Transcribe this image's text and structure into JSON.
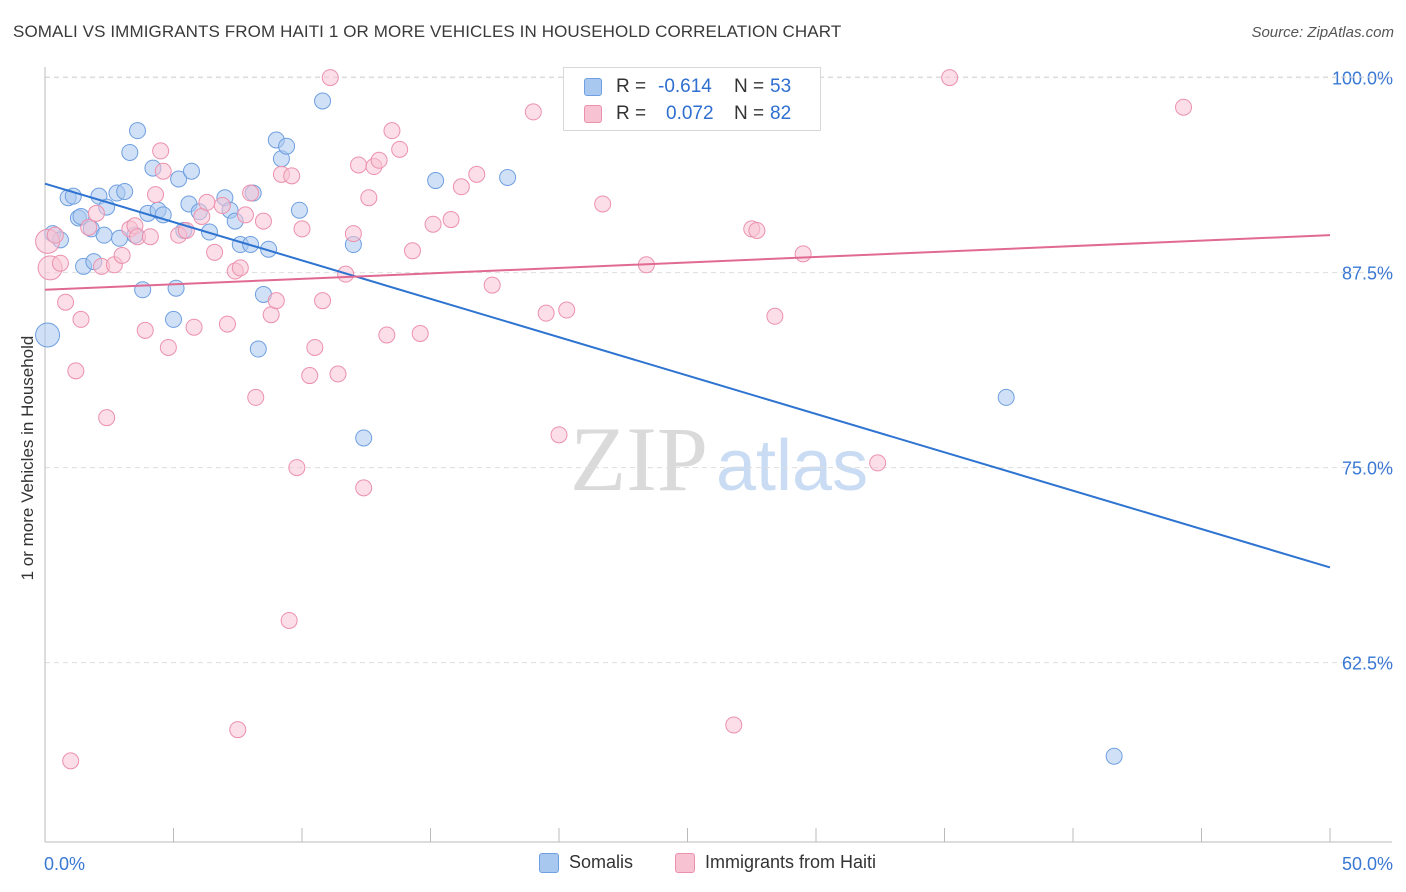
{
  "title": "SOMALI VS IMMIGRANTS FROM HAITI 1 OR MORE VEHICLES IN HOUSEHOLD CORRELATION CHART",
  "source": "Source: ZipAtlas.com",
  "watermark": {
    "zip": "ZIP",
    "atlas": "atlas"
  },
  "legend_top": {
    "rows": [
      {
        "r_label": "R =",
        "r_value": "-0.614",
        "n_label": "N =",
        "n_value": "53",
        "color": "#a9c8f0",
        "border": "#6f9fe0"
      },
      {
        "r_label": "R =",
        "r_value": "0.072",
        "n_label": "N =",
        "n_value": "82",
        "color": "#f7c3d3",
        "border": "#ec91ad"
      }
    ]
  },
  "legend_bottom": [
    {
      "label": "Somalis",
      "color": "#a9c8f0",
      "border": "#6f9fe0"
    },
    {
      "label": "Immigrants from Haiti",
      "color": "#f7c3d3",
      "border": "#ec91ad"
    }
  ],
  "chart_data": {
    "type": "scatter",
    "title": "SOMALI VS IMMIGRANTS FROM HAITI 1 OR MORE VEHICLES IN HOUSEHOLD CORRELATION CHART",
    "xlabel": "",
    "ylabel": "1 or more Vehicles in Household",
    "xlim": [
      0,
      50
    ],
    "ylim": [
      51,
      101
    ],
    "x_tick_labels": [
      "0.0%",
      "50.0%"
    ],
    "y_tick_labels": [
      "100.0%",
      "87.5%",
      "75.0%",
      "62.5%"
    ],
    "y_ticks": [
      100,
      87.5,
      75,
      62.5
    ],
    "grid": true,
    "series": [
      {
        "name": "Somalis",
        "color": "#a9c8f0",
        "stroke": "#6f9fe0",
        "line_color": "#2e74d0",
        "trend": {
          "x": [
            0,
            50
          ],
          "y": [
            93.2,
            68.6
          ]
        },
        "points": [
          [
            0.1,
            83.5
          ],
          [
            0.3,
            90.0
          ],
          [
            0.6,
            89.6
          ],
          [
            0.9,
            92.3
          ],
          [
            1.1,
            92.4
          ],
          [
            1.3,
            91.0
          ],
          [
            1.4,
            91.1
          ],
          [
            1.5,
            87.9
          ],
          [
            1.8,
            90.3
          ],
          [
            1.9,
            88.2
          ],
          [
            2.1,
            92.4
          ],
          [
            2.3,
            89.9
          ],
          [
            2.4,
            91.7
          ],
          [
            2.8,
            92.6
          ],
          [
            2.9,
            89.7
          ],
          [
            3.1,
            92.7
          ],
          [
            3.3,
            95.2
          ],
          [
            3.5,
            89.9
          ],
          [
            3.6,
            96.6
          ],
          [
            3.8,
            86.4
          ],
          [
            4.0,
            91.3
          ],
          [
            4.2,
            94.2
          ],
          [
            4.4,
            91.5
          ],
          [
            4.6,
            91.2
          ],
          [
            5.0,
            84.5
          ],
          [
            5.1,
            86.5
          ],
          [
            5.2,
            93.5
          ],
          [
            5.4,
            90.2
          ],
          [
            5.6,
            91.9
          ],
          [
            5.7,
            94.0
          ],
          [
            6.0,
            91.4
          ],
          [
            6.4,
            90.1
          ],
          [
            7.0,
            92.3
          ],
          [
            7.2,
            91.5
          ],
          [
            7.4,
            90.8
          ],
          [
            7.6,
            89.3
          ],
          [
            8.0,
            89.3
          ],
          [
            8.1,
            92.6
          ],
          [
            8.3,
            82.6
          ],
          [
            8.5,
            86.1
          ],
          [
            8.7,
            89.0
          ],
          [
            9.0,
            96.0
          ],
          [
            9.2,
            94.8
          ],
          [
            9.4,
            95.6
          ],
          [
            9.9,
            91.5
          ],
          [
            10.8,
            98.5
          ],
          [
            12.0,
            89.3
          ],
          [
            12.4,
            76.9
          ],
          [
            15.2,
            93.4
          ],
          [
            18.0,
            93.6
          ],
          [
            37.4,
            79.5
          ],
          [
            41.6,
            56.5
          ]
        ]
      },
      {
        "name": "Immigrants from Haiti",
        "color": "#f7c3d3",
        "stroke": "#ec91ad",
        "line_color": "#e06a93",
        "trend": {
          "x": [
            0,
            50
          ],
          "y": [
            86.4,
            89.9
          ]
        },
        "points": [
          [
            0.1,
            89.5
          ],
          [
            0.2,
            87.8
          ],
          [
            0.4,
            89.9
          ],
          [
            0.6,
            88.1
          ],
          [
            0.8,
            85.6
          ],
          [
            1.0,
            56.2
          ],
          [
            1.2,
            81.2
          ],
          [
            1.4,
            84.5
          ],
          [
            1.7,
            90.4
          ],
          [
            2.0,
            91.3
          ],
          [
            2.2,
            87.9
          ],
          [
            2.4,
            78.2
          ],
          [
            2.7,
            88.0
          ],
          [
            3.0,
            88.6
          ],
          [
            3.3,
            90.3
          ],
          [
            3.5,
            90.5
          ],
          [
            3.6,
            89.8
          ],
          [
            3.9,
            83.8
          ],
          [
            4.1,
            89.8
          ],
          [
            4.3,
            92.5
          ],
          [
            4.5,
            95.3
          ],
          [
            4.6,
            94.0
          ],
          [
            4.8,
            82.7
          ],
          [
            5.2,
            89.9
          ],
          [
            5.5,
            90.2
          ],
          [
            5.8,
            84.0
          ],
          [
            6.1,
            91.1
          ],
          [
            6.3,
            92.0
          ],
          [
            6.6,
            88.8
          ],
          [
            6.9,
            91.8
          ],
          [
            7.1,
            84.2
          ],
          [
            7.4,
            87.6
          ],
          [
            7.6,
            87.8
          ],
          [
            7.8,
            91.2
          ],
          [
            8.0,
            92.6
          ],
          [
            8.2,
            79.5
          ],
          [
            8.5,
            90.8
          ],
          [
            8.8,
            84.8
          ],
          [
            9.0,
            85.7
          ],
          [
            9.2,
            93.8
          ],
          [
            9.5,
            65.2
          ],
          [
            9.6,
            93.7
          ],
          [
            9.8,
            75.0
          ],
          [
            10.0,
            90.3
          ],
          [
            10.3,
            80.9
          ],
          [
            10.5,
            82.7
          ],
          [
            10.8,
            85.7
          ],
          [
            11.1,
            100.0
          ],
          [
            11.4,
            81.0
          ],
          [
            11.7,
            87.4
          ],
          [
            12.0,
            90.0
          ],
          [
            12.2,
            94.4
          ],
          [
            12.4,
            73.7
          ],
          [
            12.6,
            92.3
          ],
          [
            12.8,
            94.3
          ],
          [
            13.0,
            94.7
          ],
          [
            13.3,
            83.5
          ],
          [
            13.5,
            96.6
          ],
          [
            13.8,
            95.4
          ],
          [
            14.3,
            88.9
          ],
          [
            14.6,
            83.6
          ],
          [
            15.1,
            90.6
          ],
          [
            15.8,
            90.9
          ],
          [
            16.2,
            93.0
          ],
          [
            16.8,
            93.8
          ],
          [
            17.4,
            86.7
          ],
          [
            19.0,
            97.8
          ],
          [
            19.5,
            84.9
          ],
          [
            20.0,
            77.1
          ],
          [
            20.3,
            85.1
          ],
          [
            21.7,
            91.9
          ],
          [
            23.4,
            88.0
          ],
          [
            26.8,
            58.5
          ],
          [
            27.5,
            90.3
          ],
          [
            27.7,
            90.2
          ],
          [
            28.4,
            84.7
          ],
          [
            29.5,
            88.7
          ],
          [
            32.4,
            75.3
          ],
          [
            35.2,
            100.0
          ],
          [
            44.3,
            98.1
          ],
          [
            7.5,
            58.2
          ]
        ]
      }
    ]
  }
}
